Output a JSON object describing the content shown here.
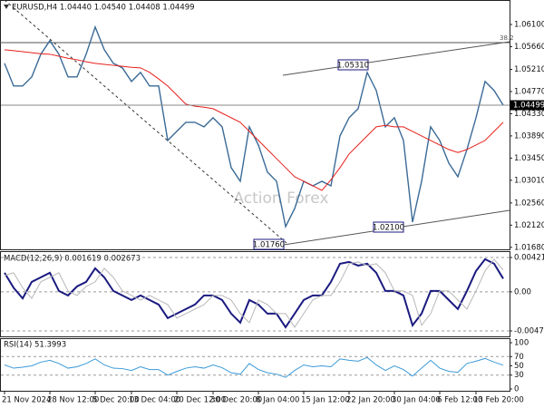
{
  "chart_data": [
    {
      "type": "line",
      "title": "EURUSD,H4  1.04440 1.04540 1.04408 1.04499",
      "watermark": "Action Forex",
      "annotations": [
        "1.05310",
        "1.02100",
        "1.01760",
        "38.2"
      ],
      "categories": [
        "21 Nov 2024",
        null,
        null,
        null,
        null,
        "28 Nov 12:00",
        null,
        null,
        null,
        null,
        "5 Dec 20:00",
        null,
        null,
        null,
        "13 Dec 04:00",
        null,
        null,
        null,
        null,
        "20 Dec 12:00",
        null,
        null,
        null,
        "30 Dec 20:00",
        null,
        null,
        null,
        null,
        "8 Jan 04:00",
        null,
        null,
        null,
        null,
        "15 Jan 12:00",
        null,
        null,
        null,
        null,
        "22 Jan 20:00",
        null,
        null,
        null,
        null,
        "30 Jan 04:00",
        null,
        null,
        null,
        null,
        "6 Feb 12:00",
        null,
        null,
        null,
        "13 Feb 20:00",
        null,
        null,
        null
      ],
      "ylim": [
        1.0164,
        1.0655
      ],
      "yticks": [
        {
          "value": 1.061,
          "label": "1.06100"
        },
        {
          "value": 1.0566,
          "label": "1.05660"
        },
        {
          "value": 1.0521,
          "label": "1.05210"
        },
        {
          "value": 1.0477,
          "label": "1.04770"
        },
        {
          "value": 1.0433,
          "label": "1.04330"
        },
        {
          "value": 1.0389,
          "label": "1.03890"
        },
        {
          "value": 1.0345,
          "label": "1.03450"
        },
        {
          "value": 1.0301,
          "label": "1.03010"
        },
        {
          "value": 1.0256,
          "label": "1.02560"
        },
        {
          "value": 1.0212,
          "label": "1.02120"
        },
        {
          "value": 1.0168,
          "label": "1.01680"
        }
      ],
      "current_price": {
        "value": 1.04499,
        "label": "1.04499"
      },
      "series": [
        {
          "color": "#3a6a96",
          "values": [
            1.0533,
            1.0488,
            1.0488,
            1.0506,
            1.0551,
            1.0578,
            1.0551,
            1.0506,
            1.0506,
            1.0551,
            1.0605,
            1.056,
            1.0533,
            1.0524,
            1.0497,
            1.0515,
            1.0488,
            1.0488,
            1.038,
            1.0398,
            1.0416,
            1.0416,
            1.0407,
            1.0425,
            1.0407,
            1.0326,
            1.0299,
            1.0407,
            1.0371,
            1.0317,
            1.0299,
            1.0209,
            1.0245,
            1.0299,
            1.029,
            1.0299,
            1.029,
            1.0389,
            1.0425,
            1.0443,
            1.0515,
            1.0479,
            1.0407,
            1.0425,
            1.038,
            1.0218,
            1.0299,
            1.0407,
            1.038,
            1.0335,
            1.0308,
            1.0362,
            1.0425,
            1.0497,
            1.0479,
            1.04499
          ]
        },
        {
          "color": "#e8201c",
          "values": [
            1.056,
            1.0558,
            1.0556,
            1.0554,
            1.0552,
            1.0551,
            1.0547,
            1.0543,
            1.054,
            1.0536,
            1.0533,
            1.0531,
            1.0529,
            1.0527,
            1.0525,
            1.0524,
            1.0515,
            1.0502,
            1.0488,
            1.047,
            1.0452,
            1.0448,
            1.0446,
            1.0443,
            1.0434,
            1.0425,
            1.0416,
            1.0398,
            1.038,
            1.0362,
            1.0344,
            1.0326,
            1.0308,
            1.0299,
            1.029,
            1.0281,
            1.0302,
            1.0326,
            1.0353,
            1.0371,
            1.0389,
            1.0407,
            1.041,
            1.0407,
            1.0407,
            1.0398,
            1.0389,
            1.038,
            1.0371,
            1.0362,
            1.0356,
            1.0362,
            1.0371,
            1.038,
            1.0398,
            1.0416
          ]
        }
      ]
    },
    {
      "type": "line",
      "title": "MACD(12,26,9) 0.001619 0.002673",
      "ylim": [
        -0.00546,
        0.00488
      ],
      "yticks": [
        0.004212,
        {
          "value": 0,
          "label": "0.00"
        },
        -0.004794
      ],
      "series": [
        {
          "color": "#1a1a80",
          "values": [
            0.00234,
            0.0005,
            -0.0008,
            0.00122,
            0.00178,
            0.00234,
            0.00011,
            -0.00044,
            0.00067,
            0.00122,
            0.00289,
            0.00178,
            0.00011,
            -0.00044,
            -0.001,
            -0.00044,
            -0.001,
            -0.00156,
            -0.00322,
            -0.00267,
            -0.00211,
            -0.00156,
            -0.00044,
            -0.00044,
            -0.001,
            -0.00267,
            -0.00378,
            -0.001,
            -0.00156,
            -0.00267,
            -0.00267,
            -0.00434,
            -0.00267,
            -0.001,
            -0.00044,
            -0.00044,
            0.00122,
            0.00345,
            0.00367,
            0.00322,
            0.00345,
            0.00234,
            0.00011,
            0.00011,
            -0.00044,
            -0.00411,
            -0.00267,
            0.00011,
            0.00011,
            -0.001,
            -0.00211,
            0.00011,
            0.00256,
            0.004,
            0.00345,
            0.001619
          ]
        },
        {
          "color": "#b8b8b8",
          "values": [
            0.002,
            0.00234,
            0.0005,
            -0.0008,
            0.00122,
            0.00178,
            0.00234,
            0.00011,
            -0.00044,
            0.00067,
            0.00122,
            0.00289,
            0.00178,
            0.00011,
            -0.00044,
            -0.001,
            -0.00044,
            -0.001,
            -0.00156,
            -0.00322,
            -0.00267,
            -0.00211,
            -0.00156,
            -0.00044,
            -0.00044,
            -0.001,
            -0.00267,
            -0.00378,
            -0.001,
            -0.00156,
            -0.00267,
            -0.00267,
            -0.00434,
            -0.00267,
            -0.001,
            -0.00044,
            -0.00044,
            0.00122,
            0.00345,
            0.00367,
            0.00322,
            0.00345,
            0.00234,
            0.00011,
            0.00011,
            -0.00044,
            -0.00411,
            -0.00267,
            0.00011,
            0.00011,
            -0.001,
            -0.00211,
            0.00011,
            0.00256,
            0.004,
            0.002673
          ]
        }
      ]
    },
    {
      "type": "line",
      "title": "RSI(14) 51.3993",
      "ylim": [
        0,
        100
      ],
      "yticks": [
        100,
        70,
        50,
        30,
        0
      ],
      "series": [
        {
          "color": "#3b9ad9",
          "values": [
            52,
            45,
            47,
            50,
            58,
            62,
            55,
            45,
            48,
            55,
            65,
            52,
            45,
            44,
            40,
            48,
            42,
            42,
            30,
            38,
            45,
            48,
            45,
            52,
            46,
            35,
            32,
            55,
            42,
            35,
            32,
            25,
            40,
            52,
            48,
            50,
            48,
            65,
            62,
            60,
            68,
            52,
            40,
            50,
            42,
            28,
            45,
            62,
            45,
            38,
            36,
            55,
            60,
            66,
            58,
            51.3993
          ]
        }
      ]
    }
  ]
}
